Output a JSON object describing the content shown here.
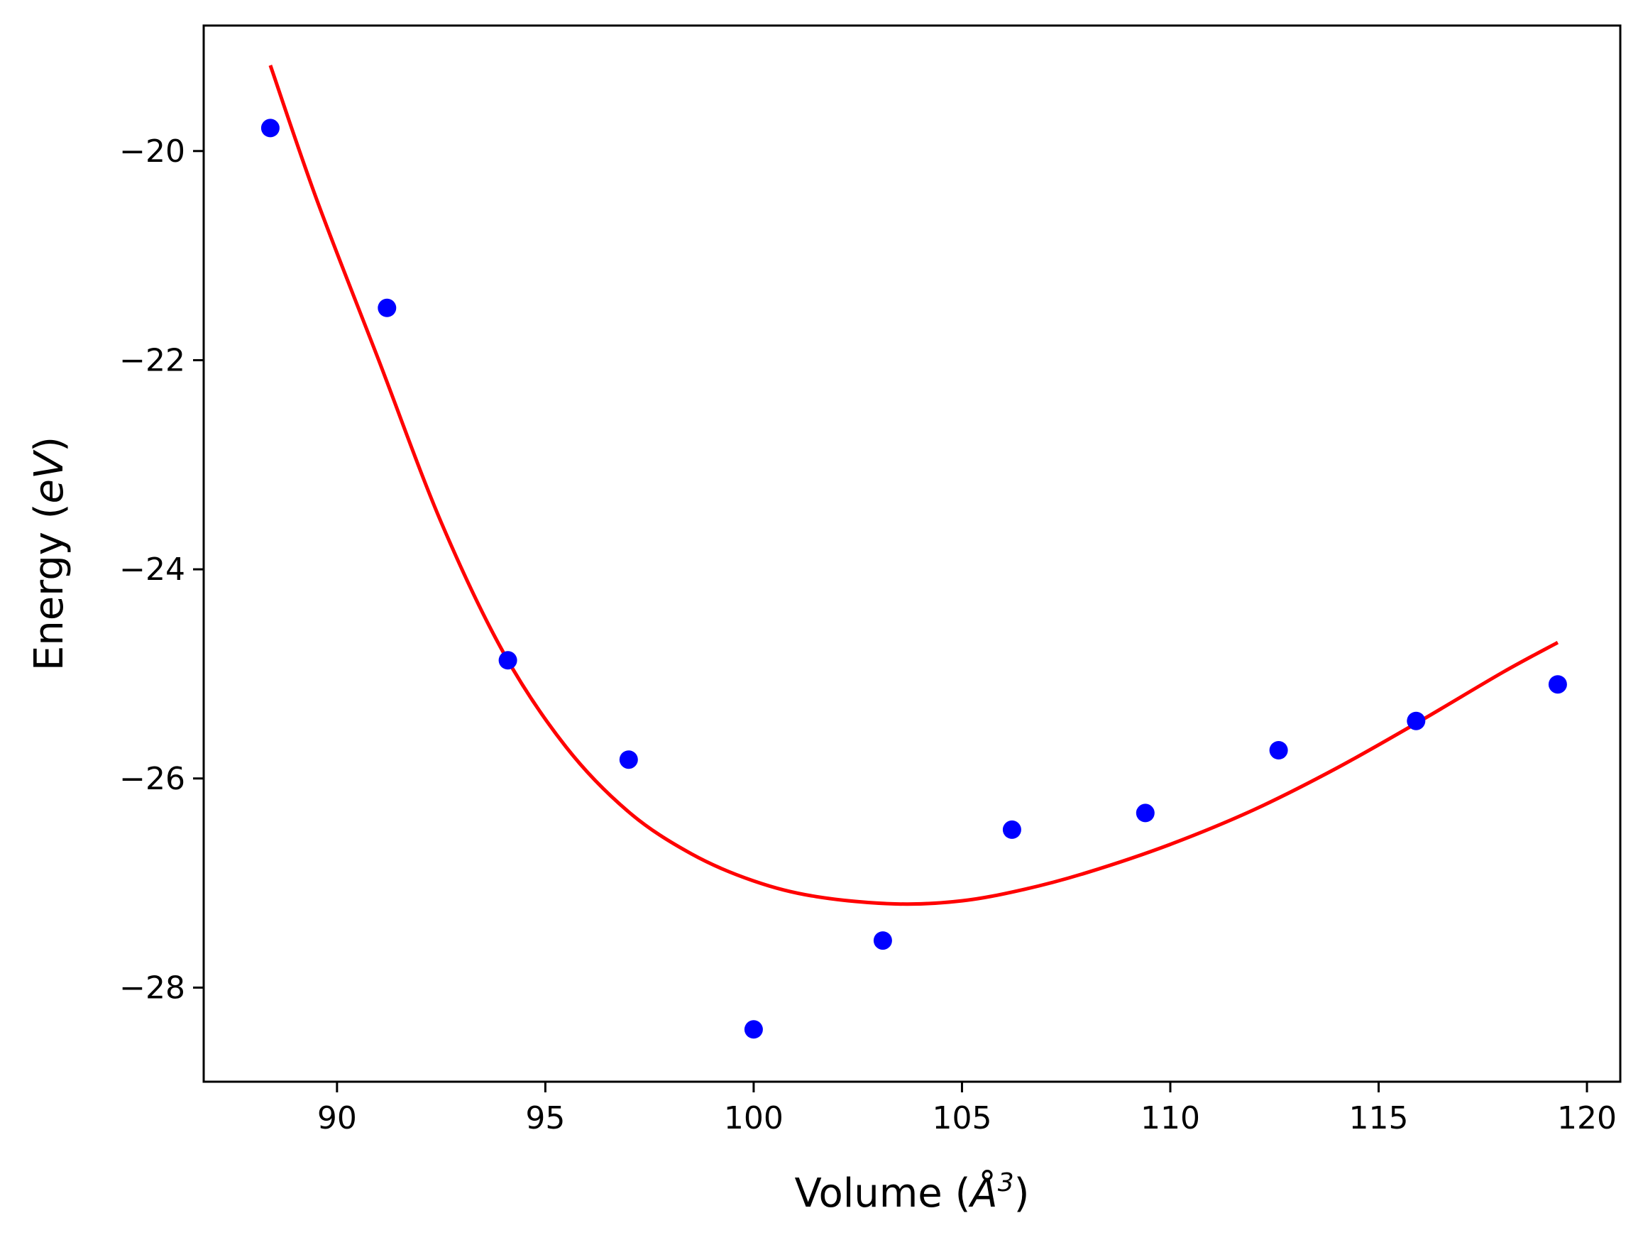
{
  "chart_data": {
    "type": "scatter",
    "title": "",
    "xlabel": {
      "prefix": "Volume (",
      "symbol": "Å",
      "superscript": "3",
      "suffix": ")"
    },
    "ylabel": {
      "prefix": "Energy (",
      "italic": "eV",
      "suffix": ")"
    },
    "xlim": [
      86.8,
      120.8
    ],
    "ylim": [
      -28.9,
      -18.8
    ],
    "xticks": [
      90,
      95,
      100,
      105,
      110,
      115,
      120
    ],
    "xtick_labels": [
      "90",
      "95",
      "100",
      "105",
      "110",
      "115",
      "120"
    ],
    "yticks": [
      -20,
      -22,
      -24,
      -26,
      -28
    ],
    "ytick_labels": [
      "−20",
      "−22",
      "−24",
      "−26",
      "−28"
    ],
    "grid": false,
    "series": [
      {
        "type": "scatter",
        "color": "#0000ff",
        "x": [
          88.4,
          91.2,
          94.1,
          97.0,
          100.0,
          103.1,
          106.2,
          109.4,
          112.6,
          115.9,
          119.3
        ],
        "y": [
          -19.78,
          -21.5,
          -24.87,
          -25.82,
          -28.4,
          -27.55,
          -26.49,
          -26.33,
          -25.73,
          -25.45,
          -25.1
        ]
      },
      {
        "type": "line",
        "color": "#ff0000",
        "x": [
          88.4,
          89.5,
          91.0,
          92.5,
          94.0,
          95.5,
          97.0,
          98.5,
          100.0,
          101.5,
          103.4,
          105.0,
          106.5,
          108.0,
          110.0,
          112.0,
          114.0,
          116.0,
          118.0,
          119.3
        ],
        "y": [
          -19.18,
          -20.45,
          -22.0,
          -23.55,
          -24.8,
          -25.7,
          -26.32,
          -26.72,
          -26.98,
          -27.13,
          -27.2,
          -27.17,
          -27.06,
          -26.9,
          -26.63,
          -26.3,
          -25.9,
          -25.45,
          -24.98,
          -24.7
        ]
      }
    ]
  }
}
